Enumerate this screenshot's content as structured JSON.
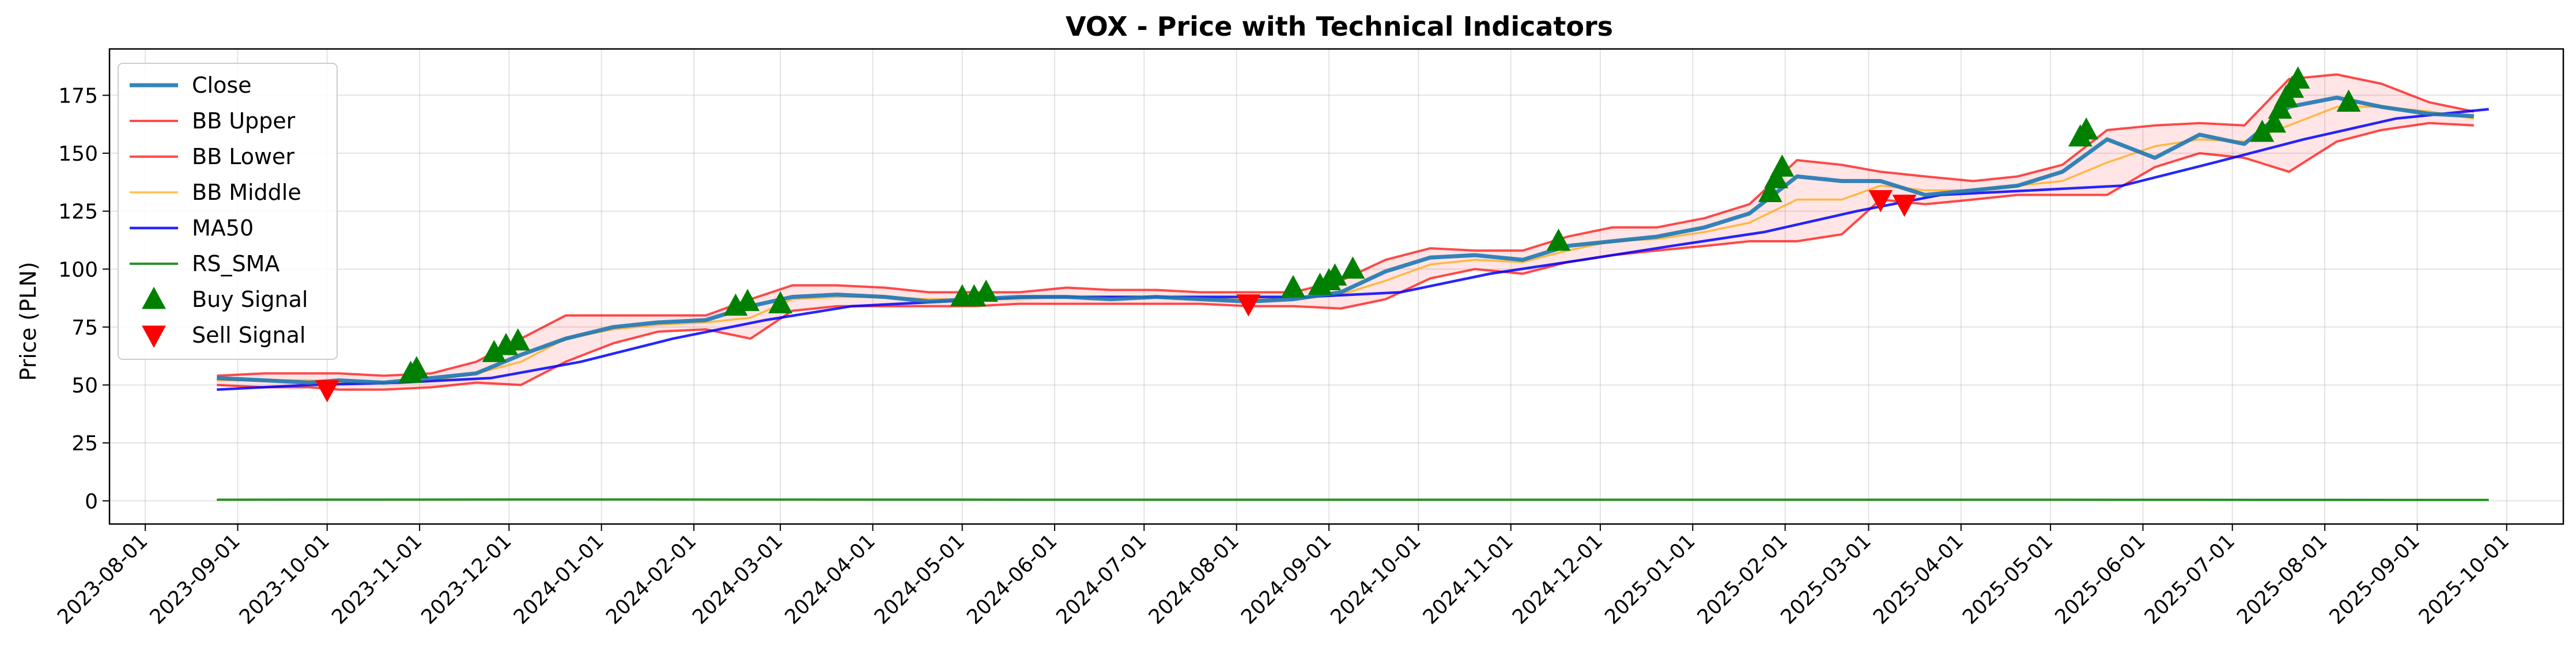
{
  "chart_data": {
    "type": "line",
    "title": "VOX - Price with Technical Indicators",
    "xlabel": "",
    "ylabel": "Price (PLN)",
    "ylim": [
      -10,
      195
    ],
    "yticks": [
      0,
      25,
      50,
      75,
      100,
      125,
      150,
      175
    ],
    "xlim": [
      "2023-07-20",
      "2025-10-20"
    ],
    "xticks": [
      "2023-08-01",
      "2023-09-01",
      "2023-10-01",
      "2023-11-01",
      "2023-12-01",
      "2024-01-01",
      "2024-02-01",
      "2024-03-01",
      "2024-04-01",
      "2024-05-01",
      "2024-06-01",
      "2024-07-01",
      "2024-08-01",
      "2024-09-01",
      "2024-10-01",
      "2024-11-01",
      "2024-12-01",
      "2025-01-01",
      "2025-02-01",
      "2025-03-01",
      "2025-04-01",
      "2025-05-01",
      "2025-06-01",
      "2025-07-01",
      "2025-08-01",
      "2025-09-01",
      "2025-10-01"
    ],
    "grid": true,
    "legend_position": "upper left",
    "series": [
      {
        "name": "Close",
        "color": "#1f77b4",
        "x": [
          "2023-08-25",
          "2023-09-10",
          "2023-09-25",
          "2023-10-05",
          "2023-10-20",
          "2023-11-05",
          "2023-11-20",
          "2023-12-05",
          "2023-12-20",
          "2024-01-05",
          "2024-01-20",
          "2024-02-05",
          "2024-02-20",
          "2024-03-05",
          "2024-03-20",
          "2024-04-05",
          "2024-04-20",
          "2024-05-05",
          "2024-05-20",
          "2024-06-05",
          "2024-06-20",
          "2024-07-05",
          "2024-07-20",
          "2024-08-05",
          "2024-08-20",
          "2024-09-05",
          "2024-09-20",
          "2024-10-05",
          "2024-10-20",
          "2024-11-05",
          "2024-11-20",
          "2024-12-05",
          "2024-12-20",
          "2025-01-05",
          "2025-01-20",
          "2025-02-05",
          "2025-02-20",
          "2025-03-05",
          "2025-03-20",
          "2025-04-05",
          "2025-04-20",
          "2025-05-05",
          "2025-05-20",
          "2025-06-05",
          "2025-06-20",
          "2025-07-05",
          "2025-07-20",
          "2025-08-05",
          "2025-08-20",
          "2025-09-05",
          "2025-09-20"
        ],
        "y": [
          53,
          52,
          51,
          52,
          51,
          53,
          55,
          63,
          70,
          75,
          77,
          78,
          84,
          88,
          89,
          88,
          86,
          87,
          88,
          88,
          87,
          88,
          87,
          86,
          87,
          90,
          99,
          105,
          106,
          104,
          110,
          112,
          114,
          118,
          124,
          140,
          138,
          138,
          132,
          134,
          136,
          142,
          156,
          148,
          158,
          154,
          170,
          174,
          170,
          167,
          166
        ]
      },
      {
        "name": "BB Upper",
        "color": "#ff0000",
        "x": [
          "2023-08-25",
          "2023-09-10",
          "2023-09-25",
          "2023-10-05",
          "2023-10-20",
          "2023-11-05",
          "2023-11-20",
          "2023-12-05",
          "2023-12-20",
          "2024-01-05",
          "2024-01-20",
          "2024-02-05",
          "2024-02-20",
          "2024-03-05",
          "2024-03-20",
          "2024-04-05",
          "2024-04-20",
          "2024-05-05",
          "2024-05-20",
          "2024-06-05",
          "2024-06-20",
          "2024-07-05",
          "2024-07-20",
          "2024-08-05",
          "2024-08-20",
          "2024-09-05",
          "2024-09-20",
          "2024-10-05",
          "2024-10-20",
          "2024-11-05",
          "2024-11-20",
          "2024-12-05",
          "2024-12-20",
          "2025-01-05",
          "2025-01-20",
          "2025-02-05",
          "2025-02-20",
          "2025-03-05",
          "2025-03-20",
          "2025-04-05",
          "2025-04-20",
          "2025-05-05",
          "2025-05-20",
          "2025-06-05",
          "2025-06-20",
          "2025-07-05",
          "2025-07-20",
          "2025-08-05",
          "2025-08-20",
          "2025-09-05",
          "2025-09-20"
        ],
        "y": [
          54,
          55,
          55,
          55,
          54,
          55,
          60,
          70,
          80,
          80,
          80,
          80,
          87,
          93,
          93,
          92,
          90,
          90,
          90,
          92,
          91,
          91,
          90,
          90,
          90,
          95,
          104,
          109,
          108,
          108,
          114,
          118,
          118,
          122,
          128,
          147,
          145,
          142,
          140,
          138,
          140,
          145,
          160,
          162,
          163,
          162,
          182,
          184,
          180,
          172,
          168
        ]
      },
      {
        "name": "BB Lower",
        "color": "#ff0000",
        "x": [
          "2023-08-25",
          "2023-09-10",
          "2023-09-25",
          "2023-10-05",
          "2023-10-20",
          "2023-11-05",
          "2023-11-20",
          "2023-12-05",
          "2023-12-20",
          "2024-01-05",
          "2024-01-20",
          "2024-02-05",
          "2024-02-20",
          "2024-03-05",
          "2024-03-20",
          "2024-04-05",
          "2024-04-20",
          "2024-05-05",
          "2024-05-20",
          "2024-06-05",
          "2024-06-20",
          "2024-07-05",
          "2024-07-20",
          "2024-08-05",
          "2024-08-20",
          "2024-09-05",
          "2024-09-20",
          "2024-10-05",
          "2024-10-20",
          "2024-11-05",
          "2024-11-20",
          "2024-12-05",
          "2024-12-20",
          "2025-01-05",
          "2025-01-20",
          "2025-02-05",
          "2025-02-20",
          "2025-03-05",
          "2025-03-20",
          "2025-04-05",
          "2025-04-20",
          "2025-05-05",
          "2025-05-20",
          "2025-06-05",
          "2025-06-20",
          "2025-07-05",
          "2025-07-20",
          "2025-08-05",
          "2025-08-20",
          "2025-09-05",
          "2025-09-20"
        ],
        "y": [
          50,
          49,
          49,
          48,
          48,
          49,
          51,
          50,
          60,
          68,
          73,
          74,
          70,
          82,
          84,
          84,
          84,
          84,
          85,
          85,
          85,
          85,
          85,
          84,
          84,
          83,
          87,
          96,
          100,
          98,
          103,
          106,
          108,
          110,
          112,
          112,
          115,
          130,
          128,
          130,
          132,
          132,
          132,
          144,
          150,
          148,
          142,
          155,
          160,
          163,
          162
        ]
      },
      {
        "name": "BB Middle",
        "color": "#ffa500",
        "x": [
          "2023-08-25",
          "2023-09-10",
          "2023-09-25",
          "2023-10-05",
          "2023-10-20",
          "2023-11-05",
          "2023-11-20",
          "2023-12-05",
          "2023-12-20",
          "2024-01-05",
          "2024-01-20",
          "2024-02-05",
          "2024-02-20",
          "2024-03-05",
          "2024-03-20",
          "2024-04-05",
          "2024-04-20",
          "2024-05-05",
          "2024-05-20",
          "2024-06-05",
          "2024-06-20",
          "2024-07-05",
          "2024-07-20",
          "2024-08-05",
          "2024-08-20",
          "2024-09-05",
          "2024-09-20",
          "2024-10-05",
          "2024-10-20",
          "2024-11-05",
          "2024-11-20",
          "2024-12-05",
          "2024-12-20",
          "2025-01-05",
          "2025-01-20",
          "2025-02-05",
          "2025-02-20",
          "2025-03-05",
          "2025-03-20",
          "2025-04-05",
          "2025-04-20",
          "2025-05-05",
          "2025-05-20",
          "2025-06-05",
          "2025-06-20",
          "2025-07-05",
          "2025-07-20",
          "2025-08-05",
          "2025-08-20",
          "2025-09-05",
          "2025-09-20"
        ],
        "y": [
          52,
          52,
          52,
          51,
          51,
          52,
          55,
          60,
          70,
          74,
          76,
          77,
          79,
          87,
          88,
          88,
          87,
          87,
          87,
          88,
          88,
          88,
          87,
          87,
          87,
          89,
          95,
          102,
          104,
          103,
          108,
          112,
          113,
          116,
          120,
          130,
          130,
          136,
          134,
          134,
          136,
          138,
          146,
          153,
          156,
          155,
          162,
          170,
          170,
          168,
          165
        ]
      },
      {
        "name": "MA50",
        "color": "#0000ff",
        "x": [
          "2023-08-25",
          "2023-09-25",
          "2023-10-25",
          "2023-11-25",
          "2023-12-25",
          "2024-01-25",
          "2024-02-25",
          "2024-03-25",
          "2024-04-25",
          "2024-05-25",
          "2024-06-25",
          "2024-07-25",
          "2024-08-25",
          "2024-09-25",
          "2024-10-25",
          "2024-11-25",
          "2024-12-25",
          "2025-01-25",
          "2025-02-25",
          "2025-03-25",
          "2025-04-25",
          "2025-05-25",
          "2025-06-25",
          "2025-07-25",
          "2025-08-25",
          "2025-09-25"
        ],
        "y": [
          48,
          50,
          51,
          53,
          60,
          70,
          78,
          84,
          86,
          88,
          88,
          88,
          88,
          90,
          98,
          104,
          110,
          116,
          125,
          132,
          134,
          136,
          146,
          156,
          165,
          169
        ]
      },
      {
        "name": "RS_SMA",
        "color": "#008000",
        "x": [
          "2023-08-25",
          "2024-01-01",
          "2024-06-01",
          "2024-11-01",
          "2025-04-01",
          "2025-09-25"
        ],
        "y": [
          0.5,
          0.6,
          0.5,
          0.5,
          0.5,
          0.4
        ]
      },
      {
        "name": "Buy Signal",
        "color": "#008000",
        "marker": "triangle-up",
        "x": [
          "2023-10-29",
          "2023-10-31",
          "2023-11-26",
          "2023-11-30",
          "2023-12-04",
          "2024-02-15",
          "2024-02-19",
          "2024-03-01",
          "2024-05-01",
          "2024-05-05",
          "2024-05-09",
          "2024-08-20",
          "2024-08-29",
          "2024-09-01",
          "2024-09-03",
          "2024-09-09",
          "2024-11-17",
          "2025-01-27",
          "2025-01-29",
          "2025-01-31",
          "2025-05-11",
          "2025-05-13",
          "2025-07-11",
          "2025-07-15",
          "2025-07-17",
          "2025-07-19",
          "2025-07-21",
          "2025-07-23",
          "2025-08-09"
        ],
        "y": [
          55,
          57,
          64,
          67,
          69,
          84,
          86,
          85,
          88,
          88,
          90,
          92,
          93,
          95,
          97,
          100,
          112,
          133,
          139,
          144,
          157,
          160,
          159,
          163,
          169,
          174,
          178,
          182,
          172
        ]
      },
      {
        "name": "Sell Signal",
        "color": "#ff0000",
        "marker": "triangle-down",
        "x": [
          "2023-10-01",
          "2024-08-05",
          "2025-03-05",
          "2025-03-13"
        ],
        "y": [
          48,
          85,
          130,
          128
        ]
      }
    ]
  }
}
